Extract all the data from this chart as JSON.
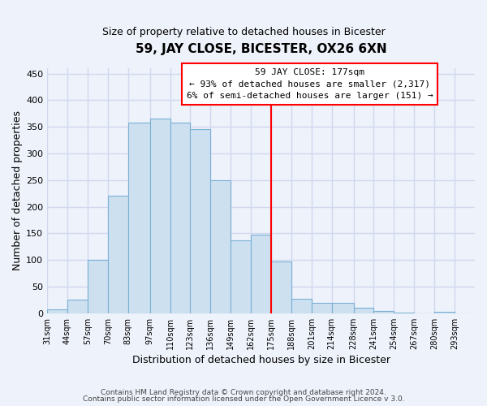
{
  "title": "59, JAY CLOSE, BICESTER, OX26 6XN",
  "subtitle": "Size of property relative to detached houses in Bicester",
  "xlabel": "Distribution of detached houses by size in Bicester",
  "ylabel": "Number of detached properties",
  "footer_line1": "Contains HM Land Registry data © Crown copyright and database right 2024.",
  "footer_line2": "Contains public sector information licensed under the Open Government Licence v 3.0.",
  "bin_labels": [
    "31sqm",
    "44sqm",
    "57sqm",
    "70sqm",
    "83sqm",
    "97sqm",
    "110sqm",
    "123sqm",
    "136sqm",
    "149sqm",
    "162sqm",
    "175sqm",
    "188sqm",
    "201sqm",
    "214sqm",
    "228sqm",
    "241sqm",
    "254sqm",
    "267sqm",
    "280sqm",
    "293sqm"
  ],
  "bin_values": [
    8,
    25,
    100,
    220,
    358,
    365,
    358,
    345,
    250,
    137,
    148,
    97,
    27,
    20,
    20,
    10,
    5,
    2,
    0,
    3
  ],
  "bin_edges": [
    31,
    44,
    57,
    70,
    83,
    97,
    110,
    123,
    136,
    149,
    162,
    175,
    188,
    201,
    214,
    228,
    241,
    254,
    267,
    280,
    293
  ],
  "bar_color": "#cce0f0",
  "bar_edge_color": "#7ab0d4",
  "property_line_x": 175,
  "property_line_color": "red",
  "annotation_title": "59 JAY CLOSE: 177sqm",
  "annotation_line1": "← 93% of detached houses are smaller (2,317)",
  "annotation_line2": "6% of semi-detached houses are larger (151) →",
  "annotation_box_edge": "red",
  "ylim": [
    0,
    460
  ],
  "yticks": [
    0,
    50,
    100,
    150,
    200,
    250,
    300,
    350,
    400,
    450
  ],
  "background_color": "#eef2fb",
  "grid_color": "#d0d8ee"
}
